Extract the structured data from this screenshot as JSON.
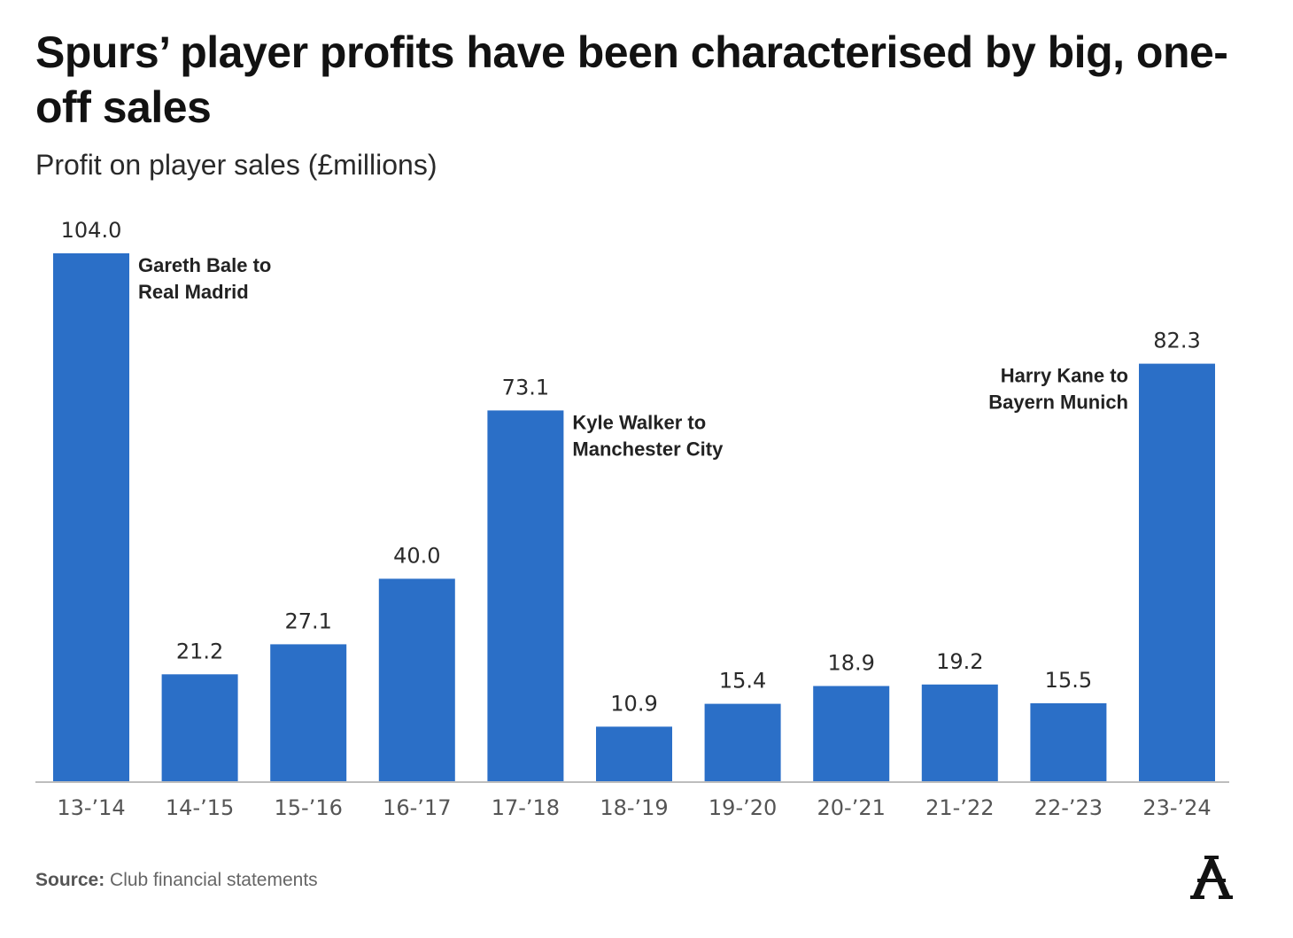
{
  "chart_data": {
    "type": "bar",
    "title": "Spurs’ player profits have been characterised by big, one-off sales",
    "subtitle": "Profit on player sales (£millions)",
    "categories": [
      "13-’14",
      "14-’15",
      "15-’16",
      "16-’17",
      "17-’18",
      "18-’19",
      "19-’20",
      "20-’21",
      "21-’22",
      "22-’23",
      "23-’24"
    ],
    "values": [
      104.0,
      21.2,
      27.1,
      40.0,
      73.1,
      10.9,
      15.4,
      18.9,
      19.2,
      15.5,
      82.3
    ],
    "value_labels": [
      "104.0",
      "21.2",
      "27.1",
      "40.0",
      "73.1",
      "10.9",
      "15.4",
      "18.9",
      "19.2",
      "15.5",
      "82.3"
    ],
    "ylim": [
      0,
      104
    ],
    "grid": false,
    "bar_color": "#2b6fc7",
    "annotations": [
      {
        "category": "13-’14",
        "lines": [
          "Gareth Bale to",
          "Real Madrid"
        ],
        "side": "right"
      },
      {
        "category": "17-’18",
        "lines": [
          "Kyle Walker to",
          "Manchester City"
        ],
        "side": "right"
      },
      {
        "category": "23-’24",
        "lines": [
          "Harry Kane to",
          "Bayern Munich"
        ],
        "side": "left"
      }
    ]
  },
  "source": {
    "label": "Source:",
    "text": "Club financial statements"
  },
  "logo": {
    "icon": "athletic-logo-icon"
  }
}
